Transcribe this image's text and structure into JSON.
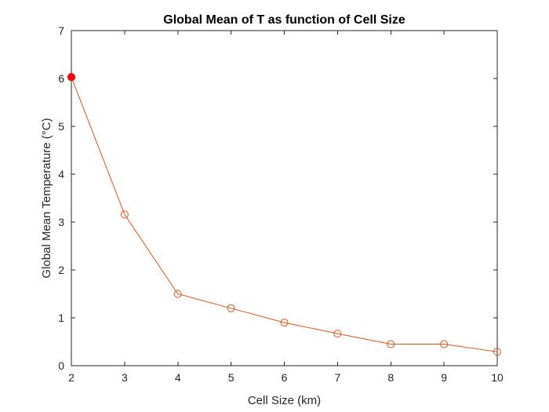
{
  "chart_data": {
    "type": "line",
    "title": "Global Mean of T as function of Cell Size",
    "xlabel": "Cell Size (km)",
    "ylabel": "Global Mean Temperature (°C)",
    "xlim": [
      2,
      10
    ],
    "ylim": [
      0,
      7
    ],
    "x_ticks": [
      "2",
      "3",
      "4",
      "5",
      "6",
      "7",
      "8",
      "9",
      "10"
    ],
    "y_ticks": [
      "0",
      "1",
      "2",
      "3",
      "4",
      "5",
      "6",
      "7"
    ],
    "grid": false,
    "series": [
      {
        "x": [
          2,
          3,
          4,
          5,
          6,
          7,
          8,
          9,
          10
        ],
        "y": [
          6.03,
          3.16,
          1.5,
          1.2,
          0.9,
          0.67,
          0.45,
          0.45,
          0.29
        ],
        "color": "#D95319",
        "marker": "open-circle"
      }
    ],
    "highlight_point": {
      "x": 2,
      "y": 6.03,
      "color": "#FF0000"
    },
    "colors": {
      "axis": "#262626",
      "series": "#D95319",
      "highlight": "#FF0000"
    }
  }
}
